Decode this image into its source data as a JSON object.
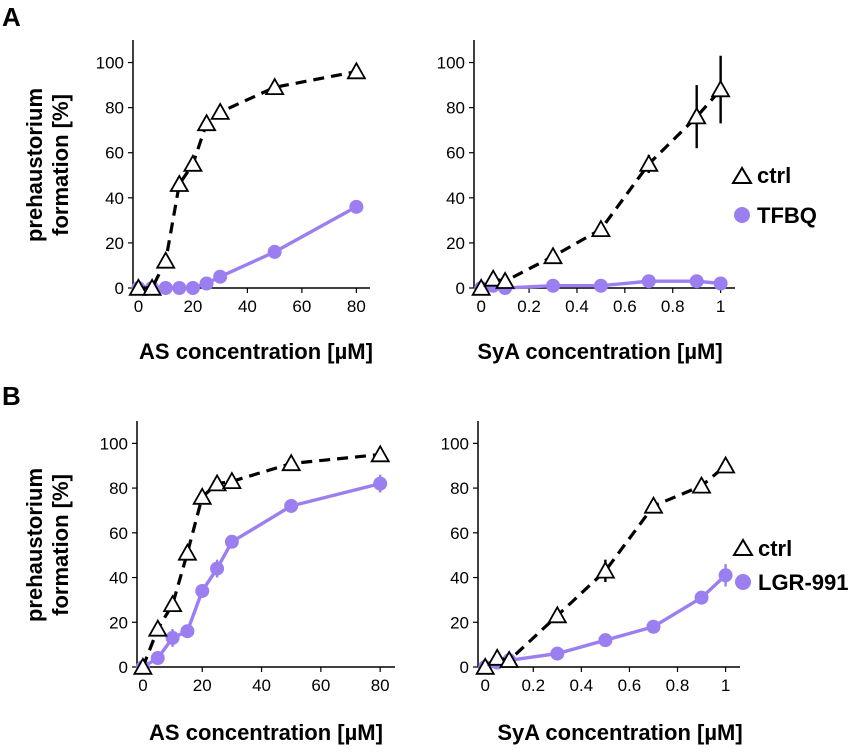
{
  "colors": {
    "ctrl": "#000000",
    "treatment": "#9b7ff0",
    "axis": "#000000"
  },
  "panels": [
    {
      "label": "A"
    },
    {
      "label": "B"
    }
  ],
  "legends": [
    {
      "ctrl": "ctrl",
      "treatment": "TFBQ"
    },
    {
      "ctrl": "ctrl",
      "treatment": "LGR-991"
    }
  ],
  "chart_data": [
    {
      "type": "line",
      "panel": "A",
      "xlabel": "AS concentration [µM]",
      "ylabel_line1": "prehaustorium",
      "ylabel_line2": "formation [%]",
      "xlim": [
        -2,
        85
      ],
      "ylim": [
        0,
        110
      ],
      "xticks": [
        0,
        20,
        40,
        60,
        80
      ],
      "yticks": [
        0,
        20,
        40,
        60,
        80,
        100
      ],
      "series": [
        {
          "name": "ctrl",
          "style": "dashed",
          "marker": "triangle",
          "x": [
            0,
            5,
            10,
            15,
            20,
            25,
            30,
            50,
            80
          ],
          "y": [
            0,
            0,
            12,
            46,
            55,
            73,
            78,
            89,
            96
          ],
          "err": [
            0,
            0,
            2,
            3,
            3,
            3,
            2,
            2,
            2
          ]
        },
        {
          "name": "TFBQ",
          "style": "solid",
          "marker": "circle",
          "x": [
            0,
            5,
            10,
            15,
            20,
            25,
            30,
            50,
            80
          ],
          "y": [
            0,
            0,
            0,
            0,
            0,
            2,
            5,
            16,
            36
          ],
          "err": [
            0,
            0,
            0,
            0,
            0,
            1,
            1,
            1,
            2
          ]
        }
      ]
    },
    {
      "type": "line",
      "panel": "A",
      "xlabel": "SyA concentration [µM]",
      "ylabel_line1": "",
      "ylabel_line2": "",
      "xlim": [
        -0.03,
        1.06
      ],
      "ylim": [
        0,
        110
      ],
      "xticks": [
        0,
        0.2,
        0.4,
        0.6,
        0.8,
        1
      ],
      "yticks": [
        0,
        20,
        40,
        60,
        80,
        100
      ],
      "xtick_labels": [
        "0",
        "0.2",
        "0.4",
        "0.6",
        "0.8",
        "1"
      ],
      "series": [
        {
          "name": "ctrl",
          "style": "dashed",
          "marker": "triangle",
          "x": [
            0,
            0.05,
            0.1,
            0.3,
            0.5,
            0.7,
            0.9,
            1.0
          ],
          "y": [
            0,
            4,
            3,
            14,
            26,
            55,
            76,
            88
          ],
          "err": [
            0,
            2,
            1,
            2,
            3,
            4,
            14,
            15
          ]
        },
        {
          "name": "TFBQ",
          "style": "solid",
          "marker": "circle",
          "x": [
            0,
            0.05,
            0.1,
            0.3,
            0.5,
            0.7,
            0.9,
            1.0
          ],
          "y": [
            0,
            1,
            0,
            1,
            1,
            3,
            3,
            2
          ],
          "err": [
            0,
            0,
            0,
            0,
            0,
            1,
            1,
            1
          ]
        }
      ]
    },
    {
      "type": "line",
      "panel": "B",
      "xlabel": "AS concentration [µM]",
      "ylabel_line1": "prehaustorium",
      "ylabel_line2": "formation [%]",
      "xlim": [
        -2,
        85
      ],
      "ylim": [
        0,
        110
      ],
      "xticks": [
        0,
        20,
        40,
        60,
        80
      ],
      "yticks": [
        0,
        20,
        40,
        60,
        80,
        100
      ],
      "series": [
        {
          "name": "ctrl",
          "style": "dashed",
          "marker": "triangle",
          "x": [
            0,
            5,
            10,
            15,
            20,
            25,
            30,
            50,
            80
          ],
          "y": [
            0,
            17,
            28,
            51,
            76,
            82,
            83,
            91,
            95
          ],
          "err": [
            0,
            2,
            2,
            3,
            3,
            2,
            2,
            2,
            2
          ]
        },
        {
          "name": "LGR-991",
          "style": "solid",
          "marker": "circle",
          "x": [
            0,
            5,
            10,
            15,
            20,
            25,
            30,
            50,
            80
          ],
          "y": [
            0,
            4,
            13,
            16,
            34,
            44,
            56,
            72,
            82
          ],
          "err": [
            0,
            2,
            4,
            3,
            3,
            4,
            2,
            3,
            4
          ]
        }
      ]
    },
    {
      "type": "line",
      "panel": "B",
      "xlabel": "SyA concentration [µM]",
      "ylabel_line1": "",
      "ylabel_line2": "",
      "xlim": [
        -0.03,
        1.06
      ],
      "ylim": [
        0,
        110
      ],
      "xticks": [
        0,
        0.2,
        0.4,
        0.6,
        0.8,
        1
      ],
      "yticks": [
        0,
        20,
        40,
        60,
        80,
        100
      ],
      "xtick_labels": [
        "0",
        "0.2",
        "0.4",
        "0.6",
        "0.8",
        "1"
      ],
      "series": [
        {
          "name": "ctrl",
          "style": "dashed",
          "marker": "triangle",
          "x": [
            0,
            0.05,
            0.1,
            0.3,
            0.5,
            0.7,
            0.9,
            1.0
          ],
          "y": [
            0,
            4,
            3,
            23,
            43,
            72,
            81,
            90
          ],
          "err": [
            0,
            2,
            1,
            2,
            5,
            2,
            2,
            2
          ]
        },
        {
          "name": "LGR-991",
          "style": "solid",
          "marker": "circle",
          "x": [
            0,
            0.05,
            0.1,
            0.3,
            0.5,
            0.7,
            0.9,
            1.0
          ],
          "y": [
            0,
            2,
            3,
            6,
            12,
            18,
            31,
            41
          ],
          "err": [
            0,
            1,
            1,
            1,
            1,
            2,
            2,
            5
          ]
        }
      ]
    }
  ]
}
